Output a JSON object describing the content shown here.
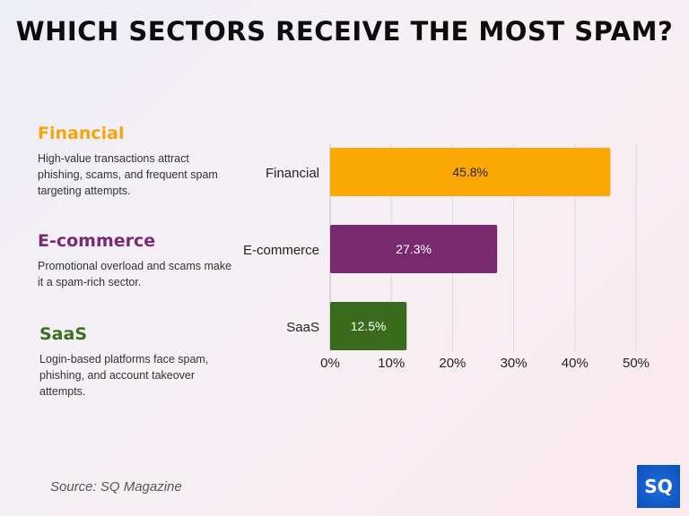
{
  "title": "WHICH SECTORS RECEIVE THE MOST SPAM?",
  "descriptions": [
    {
      "heading": "Financial",
      "text": "High-value transactions attract phishing, scams, and frequent spam targeting attempts.",
      "color": "#f5a50a"
    },
    {
      "heading": "E-commerce",
      "text": "Promotional overload and scams make it a spam-rich sector.",
      "color": "#7a2a74"
    },
    {
      "heading": "SaaS",
      "text": "Login-based platforms face spam, phishing, and account takeover attempts.",
      "color": "#3b6e1e"
    }
  ],
  "source": "Source: SQ Magazine",
  "logo": "SQ",
  "chart_data": {
    "type": "bar",
    "orientation": "horizontal",
    "categories": [
      "Financial",
      "E-commerce",
      "SaaS"
    ],
    "values": [
      45.8,
      27.3,
      12.5
    ],
    "data_labels": [
      "45.8%",
      "27.3%",
      "12.5%"
    ],
    "colors": [
      "#fca804",
      "#772a6e",
      "#3a6a1c"
    ],
    "xlim": [
      0,
      50
    ],
    "xticks": [
      0,
      10,
      20,
      30,
      40,
      50
    ],
    "xtick_labels": [
      "0%",
      "10%",
      "20%",
      "30%",
      "40%",
      "50%"
    ],
    "grid": "vertical"
  }
}
